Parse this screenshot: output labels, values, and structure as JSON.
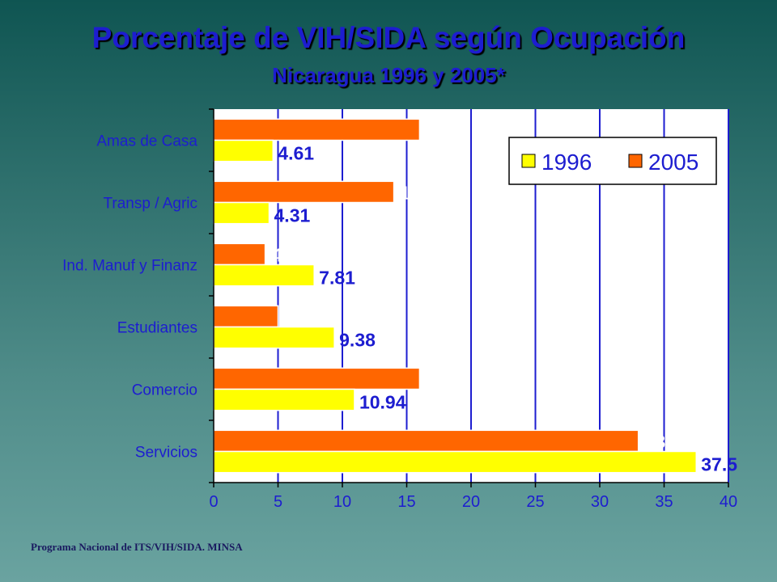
{
  "chart_data": {
    "type": "bar",
    "orientation": "horizontal",
    "title": "Porcentaje de VIH/SIDA según Ocupación",
    "subtitle": "Nicaragua 1996 y 2005*",
    "categories": [
      "Amas de Casa",
      "Transp / Agric",
      "Ind. Manuf y Finanz",
      "Estudiantes",
      "Comercio",
      "Servicios"
    ],
    "series": [
      {
        "name": "1996",
        "values": [
          4.61,
          4.31,
          7.81,
          9.38,
          10.94,
          37.5
        ],
        "labels": [
          "4.61",
          "4.31",
          "7.81",
          "9.38",
          "10.94",
          "37.5"
        ],
        "color": "#ffff00"
      },
      {
        "name": "2005",
        "values": [
          16,
          14,
          4,
          5,
          16,
          33
        ],
        "labels": [
          "16",
          "14",
          "4",
          "5",
          "16",
          "33"
        ],
        "color": "#ff6600"
      }
    ],
    "xlim": [
      0,
      40
    ],
    "xticks": [
      "0",
      "5",
      "10",
      "15",
      "20",
      "25",
      "30",
      "35",
      "40"
    ],
    "grid": true,
    "legend_position": "top-right",
    "plot_background": "#ffffff",
    "grid_color": "#1d1dd0"
  },
  "source": "Programa Nacional de ITS/VIH/SIDA. MINSA"
}
